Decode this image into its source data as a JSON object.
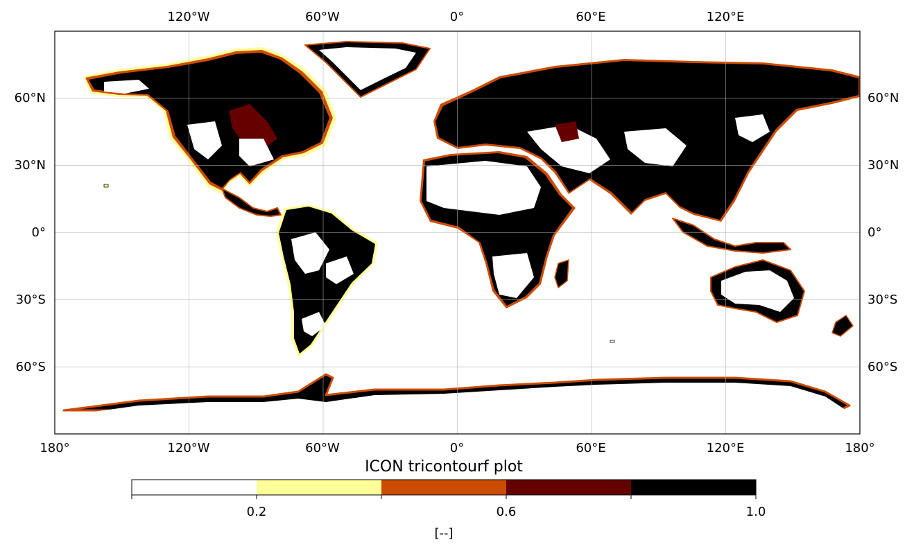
{
  "map": {
    "title": "ICON tricontourf plot",
    "projection": "PlateCarree",
    "grid": true,
    "lon_ticks_top": [
      "120°W",
      "60°W",
      "0°",
      "60°E",
      "120°E"
    ],
    "lon_ticks_bottom": [
      "180°",
      "120°W",
      "60°W",
      "0°",
      "60°E",
      "120°E",
      "180°"
    ],
    "lat_ticks": [
      "60°N",
      "30°N",
      "0°",
      "30°S",
      "60°S"
    ],
    "ocean_color": "#ffffff",
    "coastline_color": "#000000"
  },
  "colorbar": {
    "label": "[--]",
    "tick_labels": [
      "0.2",
      "0.6",
      "1.0"
    ],
    "levels": [
      0.0,
      0.2,
      0.4,
      0.6,
      0.8,
      1.0
    ],
    "colors": [
      "#ffffff",
      "#ffff99",
      "#cc4c02",
      "#660000",
      "#000000"
    ],
    "orientation": "horizontal",
    "placement": "bottom"
  },
  "chart_data": {
    "type": "heatmap",
    "variable": "",
    "value_range": [
      0.0,
      1.0
    ],
    "land_pattern": "dense land cover (≈0.8–1.0) across boreal North America, Siberia, Europe, East Asia, tropical Africa and South America; sparse (≈0–0.2) over Sahara, Arabia, central Asia deserts, Australia interior, Greenland; coastlines fringed with 0.2–0.8 bands"
  }
}
